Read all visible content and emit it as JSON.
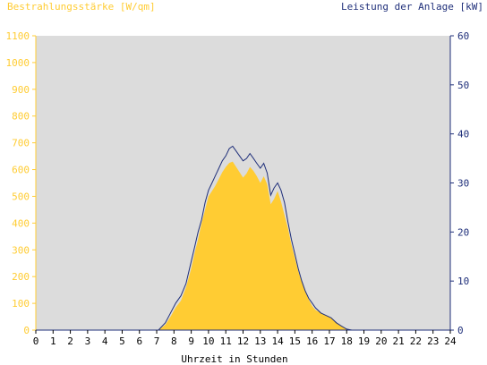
{
  "chart_data": {
    "type": "area",
    "y_left_label": "Bestrahlungsstärke [W/qm]",
    "y_right_label": "Leistung der Anlage [kW]",
    "xlabel": "Uhrzeit in Stunden",
    "xlim": [
      0,
      24
    ],
    "ylim_left": [
      0,
      1100
    ],
    "ylim_right": [
      0,
      60
    ],
    "x_ticks": [
      "0",
      "1",
      "2",
      "3",
      "4",
      "5",
      "6",
      "7",
      "8",
      "9",
      "10",
      "11",
      "12",
      "13",
      "14",
      "15",
      "16",
      "17",
      "18",
      "19",
      "20",
      "21",
      "22",
      "23",
      "24"
    ],
    "y_left_ticks": [
      "0",
      "100",
      "200",
      "300",
      "400",
      "500",
      "600",
      "700",
      "800",
      "900",
      "1000",
      "1100"
    ],
    "y_right_ticks": [
      "0",
      "10",
      "20",
      "30",
      "40",
      "50",
      "60"
    ],
    "grid": false,
    "colors": {
      "plot_background": "#dcdcdc",
      "irradiance_fill": "#ffcc33",
      "power_line": "#1f2f7a",
      "left_axis": "#ffcc33",
      "right_axis": "#1f2f7a"
    },
    "series": [
      {
        "axis": "left",
        "style": "area",
        "x": [
          0,
          7.1,
          7.5,
          7.8,
          8.1,
          8.4,
          8.7,
          9.0,
          9.2,
          9.4,
          9.6,
          9.8,
          10.0,
          10.2,
          10.4,
          10.6,
          10.8,
          11.0,
          11.2,
          11.4,
          11.6,
          11.8,
          12.0,
          12.2,
          12.4,
          12.6,
          12.8,
          13.0,
          13.2,
          13.4,
          13.6,
          13.8,
          14.0,
          14.2,
          14.4,
          14.6,
          14.8,
          15.0,
          15.2,
          15.4,
          15.6,
          15.8,
          16.0,
          16.2,
          16.5,
          16.8,
          17.1,
          17.4,
          17.7,
          18.0,
          18.3,
          24
        ],
        "y": [
          0,
          0,
          20,
          50,
          85,
          110,
          160,
          230,
          290,
          340,
          400,
          450,
          500,
          520,
          540,
          565,
          590,
          610,
          625,
          630,
          610,
          590,
          570,
          585,
          610,
          595,
          575,
          550,
          575,
          545,
          470,
          490,
          520,
          480,
          430,
          380,
          320,
          270,
          220,
          180,
          145,
          115,
          90,
          75,
          65,
          55,
          45,
          30,
          15,
          5,
          0,
          0
        ]
      },
      {
        "axis": "right",
        "style": "line",
        "x": [
          0,
          7.1,
          7.5,
          7.8,
          8.1,
          8.4,
          8.7,
          9.0,
          9.2,
          9.4,
          9.6,
          9.8,
          10.0,
          10.2,
          10.4,
          10.6,
          10.8,
          11.0,
          11.2,
          11.4,
          11.6,
          11.8,
          12.0,
          12.2,
          12.4,
          12.6,
          12.8,
          13.0,
          13.2,
          13.4,
          13.6,
          13.8,
          14.0,
          14.2,
          14.4,
          14.6,
          14.8,
          15.0,
          15.2,
          15.4,
          15.6,
          15.8,
          16.0,
          16.2,
          16.5,
          16.8,
          17.1,
          17.4,
          17.7,
          18.0,
          18.3,
          24
        ],
        "y": [
          0,
          0,
          1.5,
          3.5,
          5.5,
          7.0,
          9.5,
          14.0,
          17.0,
          20.0,
          22.5,
          26.0,
          28.5,
          30.0,
          31.5,
          33.0,
          34.5,
          35.5,
          37.0,
          37.5,
          36.5,
          35.5,
          34.5,
          35.0,
          36.0,
          35.0,
          34.0,
          33.0,
          34.0,
          32.0,
          27.5,
          29.0,
          30.0,
          28.5,
          26.0,
          22.0,
          18.5,
          15.5,
          12.5,
          10.0,
          8.0,
          6.5,
          5.5,
          4.5,
          3.5,
          3.0,
          2.5,
          1.5,
          0.8,
          0.2,
          0,
          0
        ]
      }
    ]
  }
}
